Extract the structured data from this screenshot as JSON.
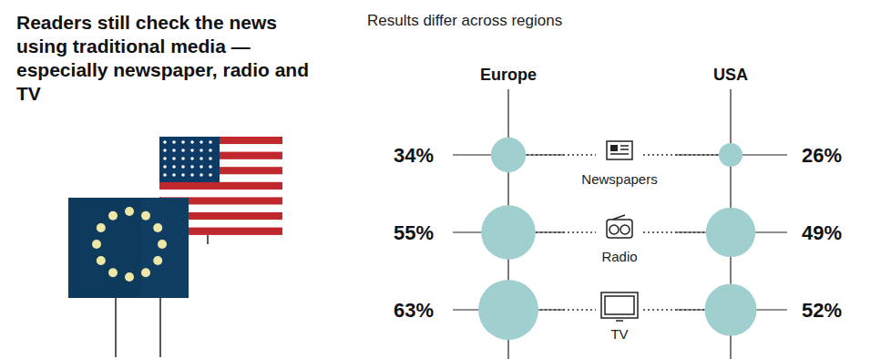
{
  "chart_data": {
    "type": "bubble",
    "title": "Readers still check the news using traditional media — especially newspaper, radio and TV",
    "subtitle": "Results differ across regions",
    "categories": [
      "Newspapers",
      "Radio",
      "TV"
    ],
    "series": [
      {
        "name": "Europe",
        "color": "#a0cfd0",
        "values": [
          34,
          55,
          63
        ],
        "value_labels": [
          "34%",
          "55%",
          "63%"
        ]
      },
      {
        "name": "USA",
        "color": "#a0cfd0",
        "values": [
          26,
          49,
          52
        ],
        "value_labels": [
          "26%",
          "49%",
          "52%"
        ]
      }
    ],
    "data_labels": true
  }
}
